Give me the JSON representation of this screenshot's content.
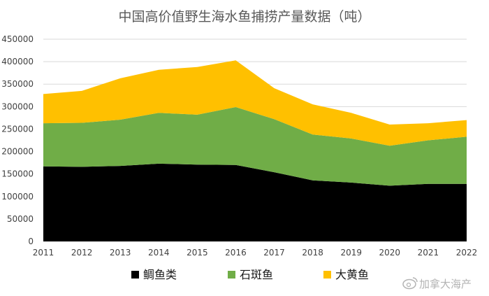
{
  "chart_data": {
    "type": "area",
    "stacked": true,
    "title": "中国高价值野生海水鱼捕捞产量数据（吨）",
    "xlabel": "",
    "ylabel": "",
    "x": [
      "2011",
      "2012",
      "2013",
      "2014",
      "2015",
      "2016",
      "2017",
      "2018",
      "2019",
      "2020",
      "2021",
      "2022"
    ],
    "ylim": [
      0,
      450000
    ],
    "yticks": [
      0,
      50000,
      100000,
      150000,
      200000,
      250000,
      300000,
      350000,
      400000,
      450000
    ],
    "ytick_labels": [
      "0",
      "50000",
      "100000",
      "150000",
      "200000",
      "250000",
      "300000",
      "350000",
      "400000",
      "450000"
    ],
    "grid": true,
    "legend_position": "bottom",
    "series": [
      {
        "name": "鲷鱼类",
        "color": "#000000",
        "values": [
          167000,
          166000,
          168000,
          173000,
          171000,
          170000,
          154000,
          136000,
          131000,
          124000,
          128000,
          128000
        ]
      },
      {
        "name": "石斑鱼",
        "color": "#70ad47",
        "values": [
          96000,
          98000,
          103000,
          113000,
          111000,
          129000,
          118000,
          102000,
          98000,
          89000,
          97000,
          105000
        ]
      },
      {
        "name": "大黄鱼",
        "color": "#ffc000",
        "values": [
          65000,
          71000,
          92000,
          96000,
          106000,
          104000,
          69000,
          67000,
          57000,
          47000,
          38000,
          37000
        ]
      }
    ]
  },
  "watermark": {
    "text": "加拿大海产",
    "icon": "weibo-icon"
  }
}
